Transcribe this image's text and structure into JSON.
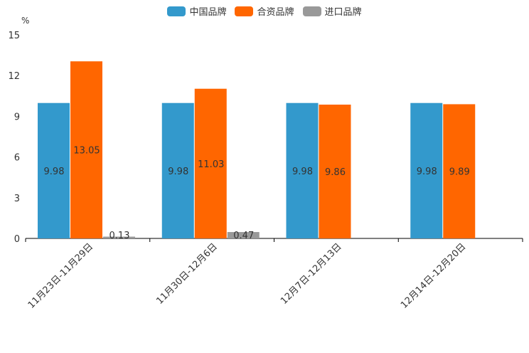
{
  "chart_data": {
    "type": "bar",
    "unit": "%",
    "categories": [
      "11月23日-11月29日",
      "11月30日-12月6日",
      "12月7日-12月13日",
      "12月14日-12月20日"
    ],
    "series": [
      {
        "name": "中国品牌",
        "color": "#3399cc",
        "values": [
          9.98,
          9.98,
          9.98,
          9.98
        ]
      },
      {
        "name": "合资品牌",
        "color": "#ff6600",
        "values": [
          13.05,
          11.03,
          9.86,
          9.89
        ]
      },
      {
        "name": "进口品牌",
        "color": "#999999",
        "values": [
          0.13,
          0.47,
          null,
          null
        ]
      }
    ],
    "ylim": [
      0,
      15
    ],
    "yticks": [
      0,
      3,
      6,
      9,
      12,
      15
    ],
    "legend_position": "top-center"
  }
}
